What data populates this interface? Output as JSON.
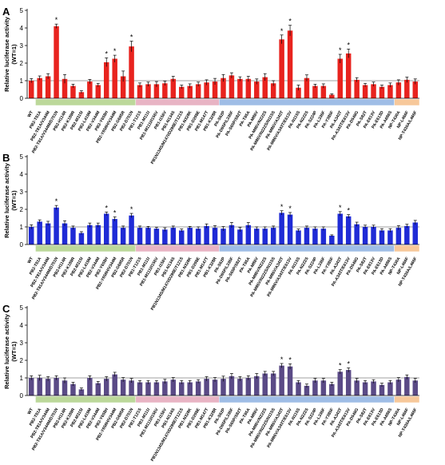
{
  "chart_data": [
    {
      "type": "bar",
      "panel_label": "A",
      "ylabel": "Relative luciferase activity",
      "ylabel2": "(WT=1)",
      "ylim": [
        0,
        5
      ],
      "yticks": [
        0,
        1,
        2,
        3,
        4,
        5
      ],
      "reference_line": 1,
      "color": "#e8231e",
      "categories": [
        "WT",
        "PB2-T81A",
        "PB2-T81A/V344M",
        "PB2-T81A/V344M/D701N",
        "PB2-H114R",
        "PB2-K189R",
        "PB2-M315I",
        "PB2-L419M",
        "PB2-V344M",
        "PB2-Y658H",
        "PB2-Y658H/V344M",
        "PB2-G685R",
        "PB2-D701N",
        "PB1-T121S",
        "PB1-M111I",
        "PB1-M111I/I156V",
        "PB1-I156V",
        "PB1-N134S",
        "PB1N134S/M147I/D298E/T121S",
        "PB1-N328K",
        "PB1-D298E",
        "PB1-M147T",
        "PB1-K328R",
        "PA-S62P",
        "PA-D65P/L336F",
        "PA-S65P/S82T",
        "PA-T85A",
        "PA-M86V",
        "PA-M86V/N222S",
        "PA-M86V/N222S/N115S",
        "PA-M86V/A343T",
        "PA-M86V/A343T/E613V",
        "PA-N115S",
        "PA-N222S",
        "PA-S224P",
        "PA-L336F",
        "PA-Y385F",
        "PA-A343T",
        "PA-A343T/E613V",
        "PA-D549G",
        "PA-S82T",
        "PA-E613V",
        "PA-E613D",
        "PA-A686S",
        "NP-T430A",
        "NP-L466F",
        "NP-T430A/L466F"
      ],
      "values": [
        1.0,
        1.15,
        1.25,
        4.1,
        1.1,
        0.7,
        0.35,
        0.95,
        0.75,
        2.05,
        2.25,
        1.25,
        2.95,
        0.75,
        0.8,
        0.8,
        0.85,
        1.1,
        0.65,
        0.7,
        0.8,
        0.9,
        0.95,
        1.15,
        1.3,
        1.1,
        1.1,
        0.95,
        1.2,
        0.85,
        3.35,
        3.85,
        0.6,
        1.15,
        0.7,
        0.7,
        0.2,
        2.25,
        2.55,
        1.05,
        0.75,
        0.8,
        0.65,
        0.75,
        0.9,
        1.05,
        0.95
      ],
      "errors": [
        0.12,
        0.12,
        0.15,
        0.12,
        0.25,
        0.1,
        0.08,
        0.12,
        0.1,
        0.25,
        0.2,
        0.3,
        0.3,
        0.12,
        0.12,
        0.15,
        0.12,
        0.15,
        0.1,
        0.12,
        0.12,
        0.15,
        0.18,
        0.2,
        0.15,
        0.12,
        0.15,
        0.15,
        0.2,
        0.15,
        0.25,
        0.3,
        0.15,
        0.18,
        0.1,
        0.12,
        0.05,
        0.25,
        0.25,
        0.12,
        0.1,
        0.12,
        0.1,
        0.12,
        0.15,
        0.15,
        0.15
      ],
      "significant": [
        3,
        9,
        10,
        12,
        30,
        31,
        37,
        38
      ],
      "significance_mark": "*"
    },
    {
      "type": "bar",
      "panel_label": "B",
      "ylabel": "Relative luciferase activity",
      "ylabel2": "(WT=1)",
      "ylim": [
        0,
        5
      ],
      "yticks": [
        0,
        1,
        2,
        3,
        4,
        5
      ],
      "reference_line": 1,
      "color": "#1f2bd6",
      "categories": [
        "WT",
        "PB2-T81A",
        "PB2-T81A/V344M",
        "PB2-T81A/V344M/D701N",
        "PB2-H114R",
        "PB2-K189R",
        "PB2-M315I",
        "PB2-L419M",
        "PB2-V344M",
        "PB2-Y658H",
        "PB2-Y658H/V344M",
        "PB2-G685R",
        "PB2-D701N",
        "PB1-T121S",
        "PB1-M111I",
        "PB1-M111I/I156V",
        "PB1-I156V",
        "PB1-N134S",
        "PB1N134S/M147I/D298E/T121S",
        "PB1-N328K",
        "PB1-D298E",
        "PB1-M147T",
        "PB1-K328R",
        "PA-S62P",
        "PA-D65P/L336F",
        "PA-S65P/S82T",
        "PA-T85A",
        "PA-M86V",
        "PA-M86V/N222S",
        "PA-M86V/N222S/N115S",
        "PA-M86V/A343T",
        "PA-M86V/A343T/E613V",
        "PA-N115S",
        "PA-N222S",
        "PA-S224P",
        "PA-L336F",
        "PA-Y385F",
        "PA-A343T",
        "PA-A343T/E613V",
        "PA-D549G",
        "PA-S82T",
        "PA-E613V",
        "PA-E613D",
        "PA-A686S",
        "NP-T430A",
        "NP-L466F",
        "NP-T430A/L466F"
      ],
      "values": [
        1.0,
        1.3,
        1.2,
        2.1,
        1.2,
        0.95,
        0.65,
        1.1,
        1.1,
        1.75,
        1.45,
        0.95,
        1.65,
        0.95,
        0.95,
        0.9,
        0.85,
        0.95,
        0.8,
        0.95,
        0.9,
        1.05,
        0.95,
        0.9,
        1.1,
        0.85,
        1.1,
        0.9,
        0.9,
        0.95,
        1.8,
        1.7,
        0.8,
        0.95,
        0.9,
        0.9,
        0.5,
        1.75,
        1.6,
        1.15,
        1.0,
        1.0,
        0.8,
        0.8,
        0.95,
        1.05,
        1.25
      ],
      "errors": [
        0.12,
        0.1,
        0.12,
        0.12,
        0.15,
        0.1,
        0.08,
        0.12,
        0.12,
        0.1,
        0.12,
        0.1,
        0.12,
        0.1,
        0.08,
        0.08,
        0.1,
        0.1,
        0.08,
        0.08,
        0.1,
        0.12,
        0.12,
        0.12,
        0.15,
        0.12,
        0.15,
        0.1,
        0.1,
        0.1,
        0.12,
        0.12,
        0.08,
        0.1,
        0.1,
        0.1,
        0.05,
        0.12,
        0.1,
        0.12,
        0.1,
        0.1,
        0.1,
        0.1,
        0.12,
        0.1,
        0.12
      ],
      "significant": [
        3,
        9,
        10,
        12,
        30,
        31,
        37,
        38
      ],
      "significance_mark": "*"
    },
    {
      "type": "bar",
      "panel_label": "C",
      "ylabel": "Relative luciferase activity",
      "ylabel2": "(WT=1)",
      "ylim": [
        0,
        5
      ],
      "yticks": [
        0,
        1,
        2,
        3,
        4,
        5
      ],
      "reference_line": 1,
      "color": "#5a4a86",
      "categories": [
        "WT",
        "PB2-T81A",
        "PB2-T81A/V344M",
        "PB2-T81A/V344M/D701N",
        "PB2-H114R",
        "PB2-K189R",
        "PB2-M315I",
        "PB2-L419M",
        "PB2-V344M",
        "PB2-Y658H",
        "PB2-Y658H/V344M",
        "PB2-G685R",
        "PB2-D701N",
        "PB1-T121S",
        "PB1-M111I",
        "PB1-M111I/I156V",
        "PB1-I156V",
        "PB1-N134S",
        "PB1N134S/M147I/D298E/T121S",
        "PB1-N328K",
        "PB1-D298E",
        "PB1-M147T",
        "PB1-K328R",
        "PA-S62P",
        "PA-D65P/L336F",
        "PA-S65P/S82T",
        "PA-T85A",
        "PA-M86V",
        "PA-M86V/N222S",
        "PA-M86V/N222S/N115S",
        "PA-M86V/A343T",
        "PA-M86V/A343T/E613V",
        "PA-N115S",
        "PA-N222S",
        "PA-S224P",
        "PA-L336F",
        "PA-Y385F",
        "PA-A343T",
        "PA-A343T/E613V",
        "PA-D549G",
        "PA-S82T",
        "PA-E613V",
        "PA-E613D",
        "PA-A686S",
        "NP-T430A",
        "NP-L466F",
        "NP-T430A/L466F"
      ],
      "values": [
        1.0,
        1.0,
        0.95,
        1.0,
        0.85,
        0.65,
        0.35,
        1.0,
        0.7,
        0.95,
        1.2,
        0.9,
        0.85,
        0.75,
        0.75,
        0.75,
        0.8,
        0.9,
        0.75,
        0.75,
        0.8,
        0.95,
        0.9,
        0.95,
        1.1,
        0.95,
        1.0,
        1.1,
        1.25,
        1.25,
        1.7,
        1.65,
        0.75,
        0.55,
        0.85,
        0.85,
        0.65,
        1.35,
        1.45,
        0.85,
        0.75,
        0.8,
        0.6,
        0.75,
        0.9,
        1.05,
        0.85
      ],
      "errors": [
        0.12,
        0.15,
        0.12,
        0.12,
        0.15,
        0.1,
        0.08,
        0.12,
        0.1,
        0.12,
        0.12,
        0.12,
        0.12,
        0.1,
        0.1,
        0.1,
        0.12,
        0.12,
        0.1,
        0.1,
        0.1,
        0.12,
        0.12,
        0.15,
        0.15,
        0.12,
        0.12,
        0.15,
        0.12,
        0.12,
        0.12,
        0.15,
        0.1,
        0.1,
        0.12,
        0.12,
        0.1,
        0.12,
        0.12,
        0.12,
        0.1,
        0.1,
        0.1,
        0.1,
        0.12,
        0.12,
        0.12
      ],
      "significant": [
        30,
        31,
        37,
        38
      ],
      "significance_mark": "*"
    }
  ],
  "group_bands": [
    {
      "color": "#bcd89a",
      "from": 1,
      "to": 12
    },
    {
      "color": "#e8b4c4",
      "from": 13,
      "to": 22
    },
    {
      "color": "#9fbde6",
      "from": 23,
      "to": 43
    },
    {
      "color": "#f7c89a",
      "from": 44,
      "to": 46
    }
  ]
}
